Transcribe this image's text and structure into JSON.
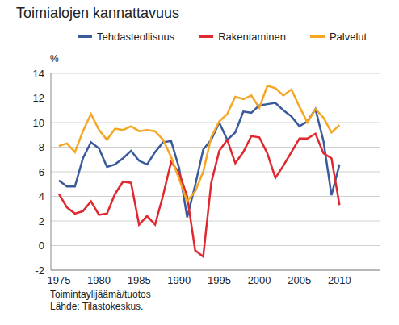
{
  "chart_data": {
    "type": "line",
    "title": "Toimialojen kannattavuus",
    "y_label": "%",
    "notes": [
      "Toimintaylijäämä/tuotos",
      "Lähde: Tilastokeskus."
    ],
    "x": [
      1975,
      1976,
      1977,
      1978,
      1979,
      1980,
      1981,
      1982,
      1983,
      1984,
      1985,
      1986,
      1987,
      1988,
      1989,
      1990,
      1991,
      1992,
      1993,
      1994,
      1995,
      1996,
      1997,
      1998,
      1999,
      2000,
      2001,
      2002,
      2003,
      2004,
      2005,
      2006,
      2007,
      2008,
      2009,
      2010
    ],
    "series": [
      {
        "name": "Tehdasteollisuus",
        "color": "#3a5a9c",
        "values": [
          5.3,
          4.8,
          4.8,
          7.1,
          8.4,
          7.9,
          6.4,
          6.6,
          7.1,
          7.7,
          6.9,
          6.6,
          7.6,
          8.4,
          8.5,
          6.3,
          2.3,
          4.9,
          7.8,
          8.6,
          10.0,
          8.6,
          9.2,
          10.9,
          10.8,
          11.4,
          11.5,
          11.6,
          11.0,
          10.5,
          9.7,
          10.1,
          11.1,
          8.5,
          4.1,
          6.6
        ]
      },
      {
        "name": "Rakentaminen",
        "color": "#e0282e",
        "values": [
          4.2,
          3.1,
          2.6,
          2.8,
          3.6,
          2.5,
          2.6,
          4.2,
          5.2,
          5.1,
          1.7,
          2.4,
          1.7,
          4.1,
          6.8,
          5.9,
          4.0,
          -0.4,
          -0.9,
          5.1,
          7.7,
          8.6,
          6.7,
          7.6,
          8.9,
          8.8,
          7.5,
          5.5,
          6.5,
          7.6,
          8.7,
          8.7,
          9.1,
          7.5,
          7.1,
          3.3
        ]
      },
      {
        "name": "Palvelut",
        "color": "#f5a623",
        "values": [
          8.1,
          8.3,
          7.6,
          9.3,
          10.7,
          9.4,
          8.6,
          9.5,
          9.4,
          9.7,
          9.3,
          9.4,
          9.3,
          8.6,
          7.2,
          5.4,
          3.6,
          4.4,
          6.0,
          8.8,
          10.1,
          10.7,
          12.1,
          11.9,
          12.2,
          11.2,
          13.0,
          12.8,
          12.2,
          12.7,
          11.3,
          10.0,
          11.1,
          10.4,
          9.2,
          9.8
        ]
      }
    ],
    "xlim": [
      1974,
      2015
    ],
    "xticks": [
      1975,
      1980,
      1985,
      1990,
      1995,
      2000,
      2005,
      2010
    ],
    "ylim": [
      -2,
      14
    ],
    "yticks": [
      -2,
      0,
      2,
      4,
      6,
      8,
      10,
      12,
      14
    ],
    "grid": true,
    "legend": "top"
  }
}
